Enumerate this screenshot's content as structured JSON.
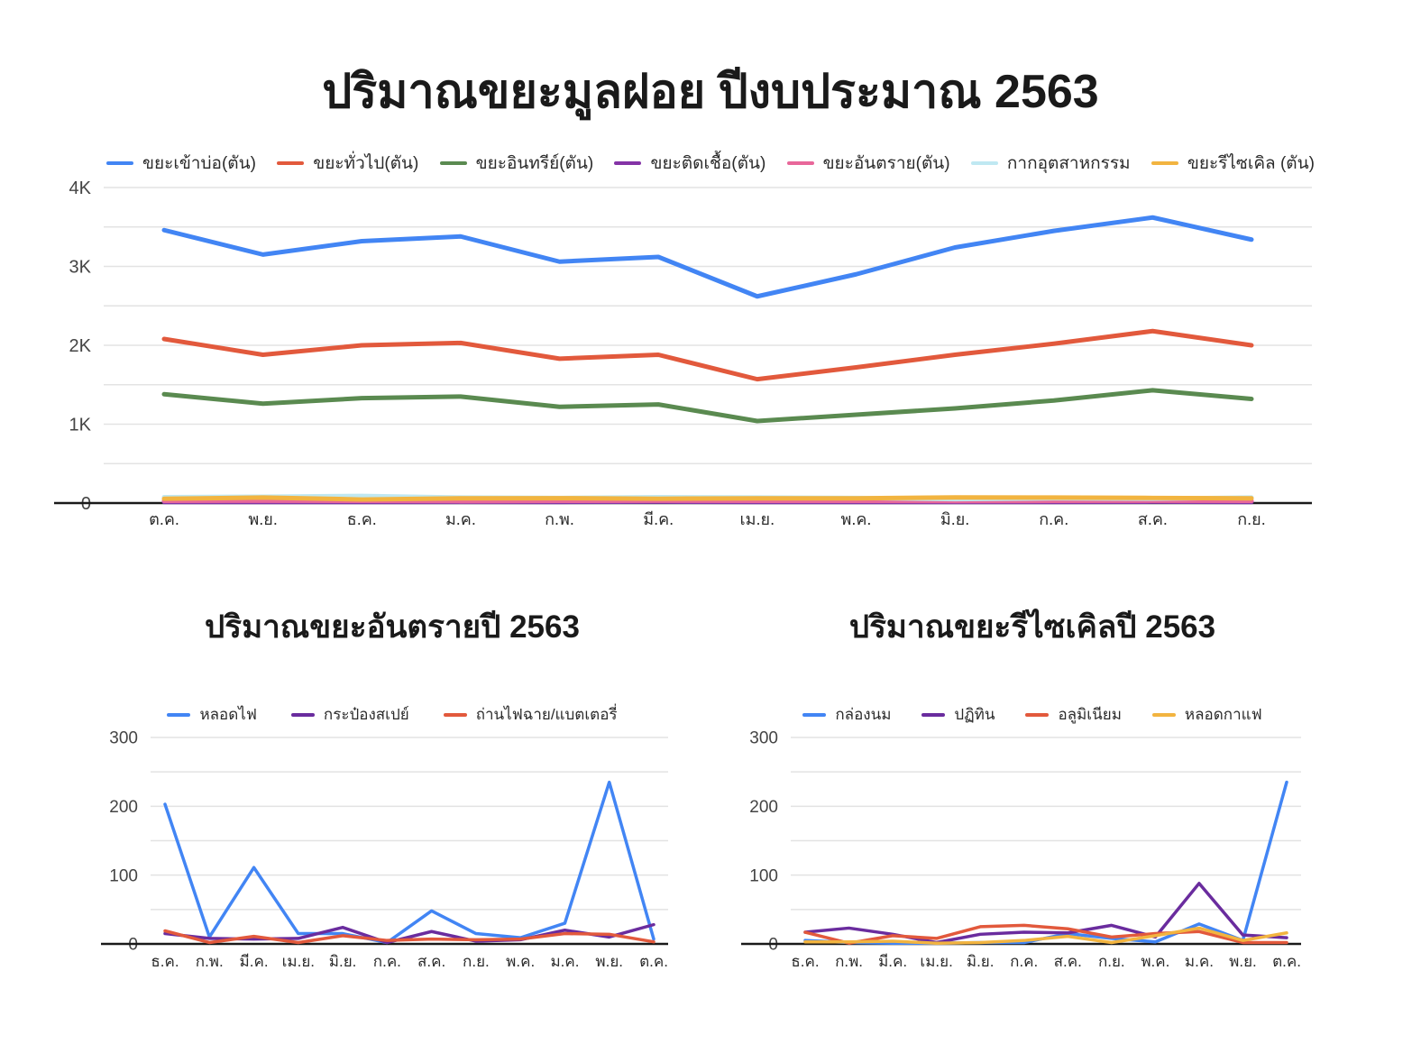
{
  "page": {
    "title": "ปริมาณขยะมูลฝอย ปีงบประมาณ 2563"
  },
  "colors": {
    "blue": "#4285F4",
    "orange": "#E2593C",
    "green": "#5A8A50",
    "purple_main": "#8433A6",
    "purple_sub": "#6A2C9E",
    "pink": "#E8679A",
    "cyan": "#BFE8F2",
    "yellow": "#F2B440",
    "grid": "#e3e3e3",
    "axis": "#1a1a1a"
  },
  "chart_data": [
    {
      "id": "main",
      "type": "line",
      "title": "ปริมาณขยะมูลฝอย ปีงบประมาณ 2563",
      "legend_position": "top",
      "grid": true,
      "categories": [
        "ต.ค.",
        "พ.ย.",
        "ธ.ค.",
        "ม.ค.",
        "ก.พ.",
        "มี.ค.",
        "เม.ย.",
        "พ.ค.",
        "มิ.ย.",
        "ก.ค.",
        "ส.ค.",
        "ก.ย."
      ],
      "ylim": [
        0,
        4000
      ],
      "ytick_step": 500,
      "ylabel_step": 1000,
      "ytick_labels": [
        "0",
        "1K",
        "2K",
        "3K",
        "4K"
      ],
      "series": [
        {
          "name": "ขยะเข้าบ่อ(ตัน)",
          "color": "#4285F4",
          "values": [
            3460,
            3150,
            3320,
            3380,
            3060,
            3120,
            2620,
            2900,
            3240,
            3450,
            3620,
            3340
          ]
        },
        {
          "name": "ขยะทั่วไป(ตัน)",
          "color": "#E2593C",
          "values": [
            2080,
            1880,
            2000,
            2030,
            1830,
            1880,
            1570,
            1720,
            1880,
            2020,
            2180,
            2000
          ]
        },
        {
          "name": "ขยะอินทรีย์(ตัน)",
          "color": "#5A8A50",
          "values": [
            1380,
            1260,
            1330,
            1350,
            1220,
            1250,
            1040,
            1120,
            1200,
            1300,
            1430,
            1320
          ]
        },
        {
          "name": "ขยะติดเชื้อ(ตัน)",
          "color": "#8433A6",
          "values": [
            15,
            15,
            14,
            16,
            15,
            18,
            15,
            14,
            15,
            15,
            18,
            15
          ]
        },
        {
          "name": "ขยะอันตราย(ตัน)",
          "color": "#E8679A",
          "values": [
            28,
            30,
            28,
            25,
            28,
            30,
            28,
            28,
            26,
            28,
            30,
            28
          ]
        },
        {
          "name": "กากอุตสาหกรรม",
          "color": "#BFE8F2",
          "values": [
            75,
            80,
            90,
            70,
            65,
            75,
            70,
            65,
            50,
            60,
            55,
            70
          ]
        },
        {
          "name": "ขยะรีไซเคิล (ตัน)",
          "color": "#F2B440",
          "values": [
            55,
            70,
            45,
            60,
            62,
            55,
            60,
            60,
            72,
            70,
            65,
            60
          ]
        }
      ]
    },
    {
      "id": "hazard",
      "type": "line",
      "title": "ปริมาณขยะอันตรายปี 2563",
      "legend_position": "top",
      "grid": true,
      "categories": [
        "ธ.ค.",
        "ก.พ.",
        "มี.ค.",
        "เม.ย.",
        "มิ.ย.",
        "ก.ค.",
        "ส.ค.",
        "ก.ย.",
        "พ.ค.",
        "ม.ค.",
        "พ.ย.",
        "ต.ค."
      ],
      "ylim": [
        0,
        300
      ],
      "ytick_step": 50,
      "ylabel_step": 100,
      "ytick_labels": [
        "0",
        "100",
        "200",
        "300"
      ],
      "series": [
        {
          "name": "หลอดไฟ",
          "color": "#4285F4",
          "values": [
            203,
            10,
            111,
            15,
            15,
            2,
            48,
            15,
            9,
            30,
            235,
            7
          ]
        },
        {
          "name": "กระป๋องสเปย์",
          "color": "#6A2C9E",
          "values": [
            15,
            8,
            7,
            8,
            24,
            2,
            18,
            4,
            6,
            20,
            10,
            28
          ]
        },
        {
          "name": "ถ่านไฟฉาย/แบตเตอรี่",
          "color": "#E2593C",
          "values": [
            19,
            2,
            11,
            2,
            12,
            5,
            7,
            6,
            7,
            15,
            14,
            3
          ]
        }
      ]
    },
    {
      "id": "recycle",
      "type": "line",
      "title": "ปริมาณขยะรีไซเคิลปี 2563",
      "legend_position": "top",
      "grid": true,
      "categories": [
        "ธ.ค.",
        "ก.พ.",
        "มี.ค.",
        "เม.ย.",
        "มิ.ย.",
        "ก.ค.",
        "ส.ค.",
        "ก.ย.",
        "พ.ค.",
        "ม.ค.",
        "พ.ย.",
        "ต.ค."
      ],
      "ylim": [
        0,
        300
      ],
      "ytick_step": 50,
      "ylabel_step": 100,
      "ytick_labels": [
        "0",
        "100",
        "200",
        "300"
      ],
      "series": [
        {
          "name": "กล่องนม",
          "color": "#4285F4",
          "values": [
            5,
            2,
            1,
            1,
            2,
            2,
            15,
            8,
            3,
            29,
            5,
            235
          ]
        },
        {
          "name": "ปฏิทิน",
          "color": "#6A2C9E",
          "values": [
            17,
            23,
            14,
            2,
            14,
            17,
            16,
            27,
            10,
            88,
            13,
            9
          ]
        },
        {
          "name": "อลูมิเนียม",
          "color": "#E2593C",
          "values": [
            17,
            1,
            12,
            8,
            25,
            27,
            22,
            10,
            15,
            18,
            2,
            2
          ]
        },
        {
          "name": "หลอดกาแฟ",
          "color": "#F2B440",
          "values": [
            3,
            3,
            4,
            1,
            2,
            5,
            11,
            2,
            12,
            23,
            5,
            16
          ]
        }
      ]
    }
  ]
}
